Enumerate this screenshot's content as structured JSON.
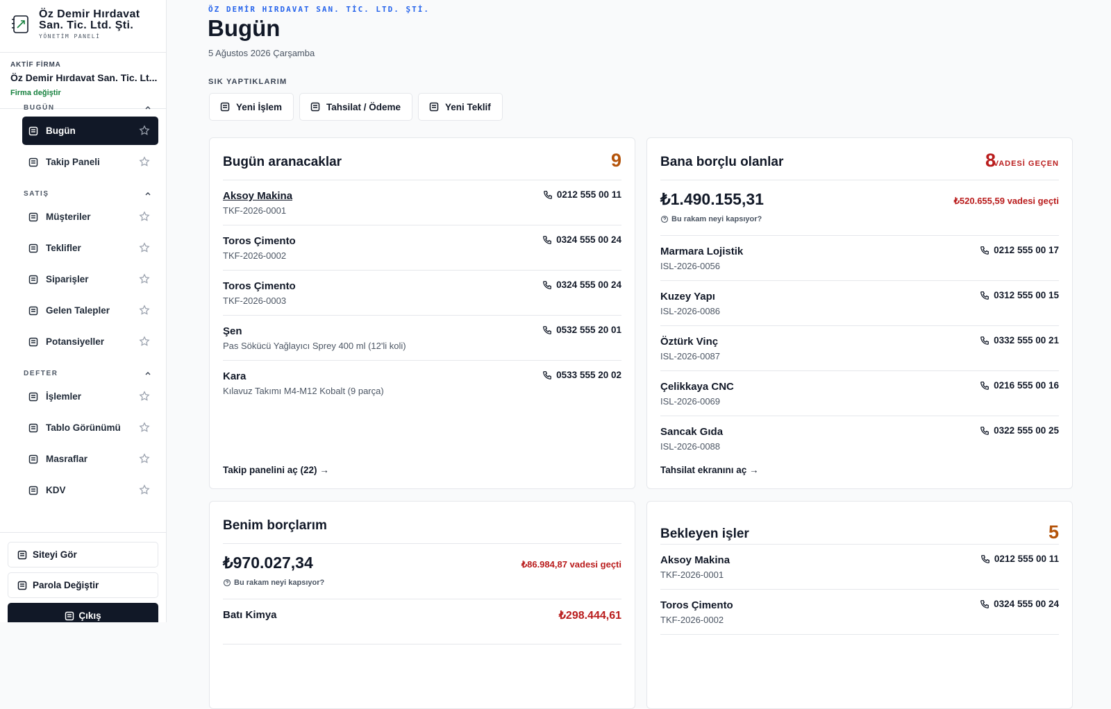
{
  "sidebar": {
    "brand": {
      "name": "Öz Demir Hırdavat San. Tic. Ltd. Şti.",
      "subtitle": "YÖNETİM PANELİ"
    },
    "active_firm": {
      "label": "AKTİF FİRMA",
      "name": "Öz Demir Hırdavat San. Tic. Lt...",
      "change": "Firma değiştir"
    },
    "groups": [
      {
        "title": "BUGÜN",
        "items": [
          "Bugün",
          "Takip Paneli"
        ]
      },
      {
        "title": "SATIŞ",
        "items": [
          "Müşteriler",
          "Teklifler",
          "Siparişler",
          "Gelen Talepler",
          "Potansiyeller"
        ]
      },
      {
        "title": "DEFTER",
        "items": [
          "İşlemler",
          "Tablo Görünümü",
          "Masraflar",
          "KDV"
        ]
      }
    ],
    "bottom": [
      "Siteyi Gör",
      "Parola Değiştir",
      "Çıkış"
    ]
  },
  "header": {
    "company": "ÖZ DEMİR HIRDAVAT SAN. TİC. LTD. ŞTİ.",
    "title": "Bugün",
    "date": "5 Ağustos 2026 Çarşamba",
    "quick_label": "SIK YAPTIKLARIM",
    "quick_actions": [
      "Yeni İşlem",
      "Tahsilat / Ödeme",
      "Yeni Teklif"
    ]
  },
  "cards": [
    {
      "title": "Bugün aranacaklar",
      "count": 9,
      "items": [
        {
          "name": "Aksoy Makina",
          "sub": "TKF-2026-0001",
          "phone": "0212 555 00 11"
        },
        {
          "name": "Toros Çimento",
          "sub": "TKF-2026-0002",
          "phone": "0324 555 00 24"
        },
        {
          "name": "Toros Çimento",
          "sub": "TKF-2026-0003",
          "phone": "0324 555 00 24"
        },
        {
          "name": "Şen",
          "sub": "Pas Sökücü Yağlayıcı Sprey 400 ml (12'li koli)",
          "phone": "0532 555 20 01"
        },
        {
          "name": "Kara",
          "sub": "Kılavuz Takımı M4-M12 Kobalt (9 parça)",
          "phone": "0533 555 20 02"
        }
      ],
      "footer": "Takip panelini aç (22) →"
    },
    {
      "title": "Bana borçlu olanlar",
      "count": 8,
      "badge": "VADESİ GEÇEN",
      "amount": "₺1.490.155,31",
      "overdue": "₺520.655,59 vadesi geçti",
      "help": "Bu rakam neyi kapsıyor?",
      "items": [
        {
          "name": "Marmara Lojistik",
          "sub": "ISL-2026-0056",
          "phone": "0212 555 00 17"
        },
        {
          "name": "Kuzey Yapı",
          "sub": "ISL-2026-0086",
          "phone": "0312 555 00 15"
        },
        {
          "name": "Öztürk Vinç",
          "sub": "ISL-2026-0087",
          "phone": "0332 555 00 21"
        },
        {
          "name": "Çelikkaya CNC",
          "sub": "ISL-2026-0069",
          "phone": "0216 555 00 16"
        },
        {
          "name": "Sancak Gıda",
          "sub": "ISL-2026-0088",
          "phone": "0322 555 00 25"
        }
      ],
      "footer": "Tahsilat ekranını aç →"
    },
    {
      "title": "Benim borçlarım",
      "amount": "₺970.027,34",
      "overdue": "₺86.984,87 vadesi geçti",
      "help": "Bu rakam neyi kapsıyor?",
      "items": [
        {
          "name": "Batı Kimya",
          "amount": "₺298.444,61"
        }
      ]
    },
    {
      "title": "Bekleyen işler",
      "count": 5,
      "items": [
        {
          "name": "Aksoy Makina",
          "sub": "TKF-2026-0001",
          "phone": "0212 555 00 11"
        },
        {
          "name": "Toros Çimento",
          "sub": "TKF-2026-0002",
          "phone": "0324 555 00 24"
        }
      ]
    }
  ]
}
